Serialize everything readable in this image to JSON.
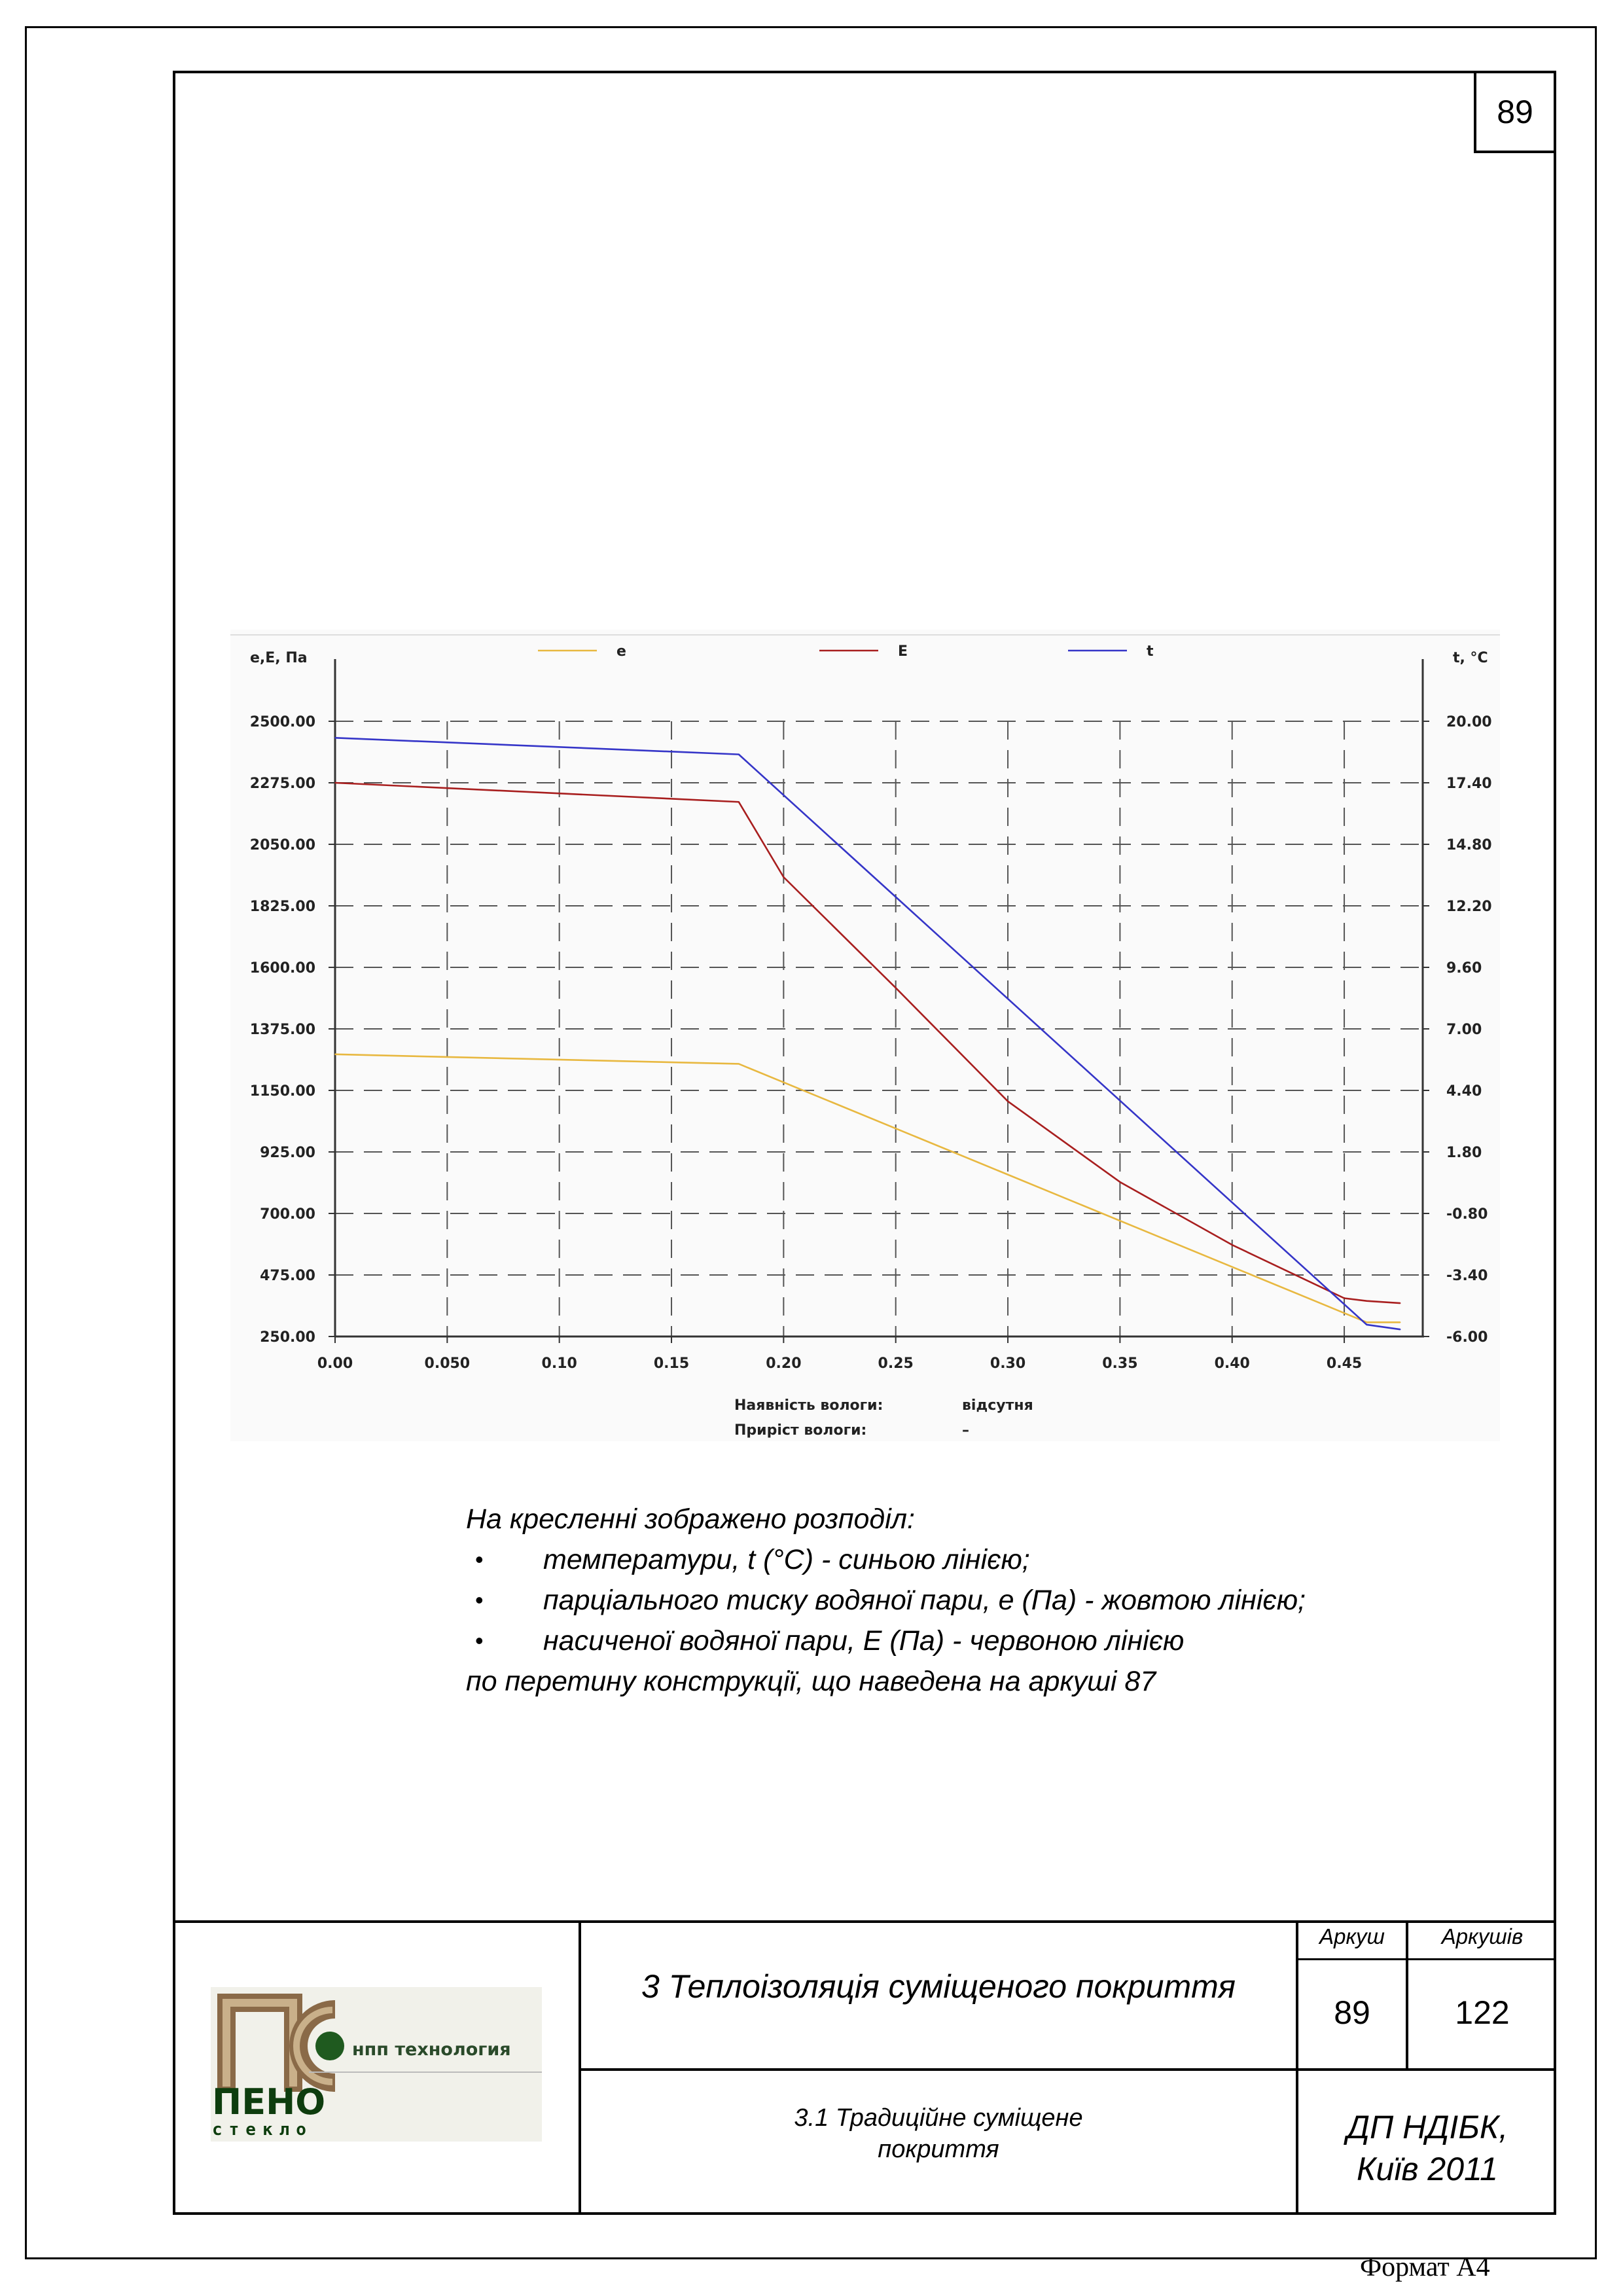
{
  "page_number": "89",
  "chart_data": {
    "type": "line",
    "legend": [
      "e",
      "E",
      "t"
    ],
    "left_axis_label": "e,E, Па",
    "right_axis_label": "t, °C",
    "x_ticks": [
      "0.00",
      "0.050",
      "0.10",
      "0.15",
      "0.20",
      "0.25",
      "0.30",
      "0.35",
      "0.40",
      "0.45"
    ],
    "x_tick_values": [
      0.0,
      0.05,
      0.1,
      0.15,
      0.2,
      0.25,
      0.3,
      0.35,
      0.4,
      0.45
    ],
    "left_ticks": [
      "2500.00",
      "2275.00",
      "2050.00",
      "1825.00",
      "1600.00",
      "1375.00",
      "1150.00",
      "925.00",
      "700.00",
      "475.00",
      "250.00"
    ],
    "right_ticks": [
      "20.00",
      "17.40",
      "14.80",
      "12.20",
      "9.60",
      "7.00",
      "4.40",
      "1.80",
      "-0.80",
      "-3.40",
      "-6.00"
    ],
    "xlim": [
      0.0,
      0.485
    ],
    "ylim_left": [
      250,
      2500
    ],
    "ylim_right": [
      -6.0,
      20.0
    ],
    "grid": true,
    "series": [
      {
        "name": "e",
        "axis": "left",
        "color": "#e8b840",
        "x": [
          0.0,
          0.18,
          0.46,
          0.475
        ],
        "y": [
          1282,
          1247,
          302,
          302
        ]
      },
      {
        "name": "E",
        "axis": "left",
        "color": "#a81e1e",
        "x": [
          0.0,
          0.18,
          0.2,
          0.25,
          0.3,
          0.35,
          0.4,
          0.45,
          0.46,
          0.475
        ],
        "y": [
          2275,
          2205,
          1930,
          1525,
          1110,
          815,
          585,
          390,
          380,
          372
        ],
        "dotted_segment": [
          0.18,
          0.24
        ]
      },
      {
        "name": "t",
        "axis": "right",
        "color": "#3535c8",
        "x": [
          0.0,
          0.18,
          0.46,
          0.475
        ],
        "y": [
          19.3,
          18.6,
          -5.5,
          -5.7
        ]
      }
    ],
    "info": [
      {
        "label": "Наявність вологи:",
        "value": "відсутня"
      },
      {
        "label": "Приріст вологи:",
        "value": "–"
      }
    ]
  },
  "caption": {
    "intro": "На кресленні зображено розподіл:",
    "bullet_symbol": "•",
    "items": [
      "температури, t (°C) - синьою лінією;",
      "парціального тиску водяної пари, е (Па) - жовтою лінією;",
      "насиченої водяної пари, Е (Па) - червоною лінією"
    ],
    "outro": "по перетину конструкції, що наведена на аркуші 87"
  },
  "title_block": {
    "logo_top_text": "нпп технология",
    "logo_main": "ПЕНО",
    "logo_sub": "стекло",
    "logo_letters": "ПС",
    "section_title": "3 Теплоізоляція суміщеного покриття",
    "subsection_title_line1": "3.1 Традиційне суміщене",
    "subsection_title_line2": "покриття",
    "sheet_label": "Аркуш",
    "sheets_label": "Аркушів",
    "sheet_value": "89",
    "sheets_value": "122",
    "org_line1": "ДП НДІБК,",
    "org_line2": "Київ 2011"
  },
  "format_label": "Формат А4"
}
